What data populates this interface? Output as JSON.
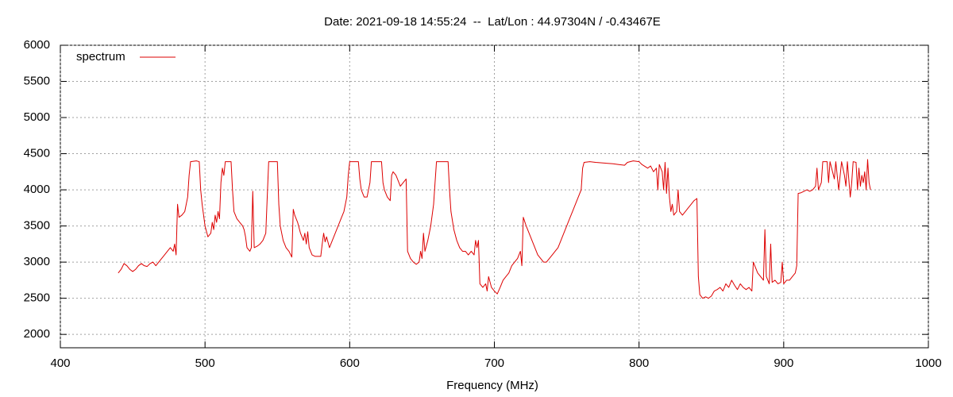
{
  "chart_data": {
    "type": "line",
    "title": "Date: 2021-09-18 14:55:24  --  Lat/Lon : 44.97304N / -0.43467E",
    "x_label": "Frequency (MHz)",
    "xlim": [
      400,
      1000
    ],
    "xticks": [
      400,
      500,
      600,
      700,
      800,
      900,
      1000
    ],
    "ylim": [
      1815,
      6000
    ],
    "yticks": [
      2000,
      2500,
      3000,
      3500,
      4000,
      4500,
      5000,
      5500,
      6000
    ],
    "grid": true,
    "legend": "top-left",
    "x": [
      440,
      442,
      444,
      446,
      448,
      450,
      452,
      454,
      456,
      458,
      460,
      462,
      464,
      466,
      468,
      470,
      472,
      474,
      476,
      478,
      479,
      480,
      481,
      482,
      484,
      486,
      488,
      489,
      490,
      494,
      496,
      497,
      498,
      500,
      502,
      504,
      505,
      506,
      507,
      508,
      509,
      510,
      511,
      512,
      513,
      514,
      518,
      519,
      520,
      522,
      524,
      526,
      527,
      528,
      529,
      531,
      532,
      533,
      534,
      536,
      538,
      540,
      542,
      543,
      544,
      550,
      551,
      552,
      554,
      556,
      558,
      560,
      561,
      562,
      564,
      566,
      568,
      569,
      570,
      571,
      572,
      574,
      576,
      578,
      580,
      581,
      582,
      583,
      584,
      586,
      588,
      590,
      592,
      594,
      596,
      598,
      599,
      600,
      606,
      607,
      608,
      610,
      612,
      614,
      615,
      622,
      623,
      624,
      626,
      628,
      629,
      630,
      632,
      634,
      635,
      637,
      639,
      640,
      642,
      644,
      646,
      648,
      649,
      650,
      651,
      652,
      654,
      656,
      658,
      659,
      660,
      668,
      669,
      670,
      672,
      674,
      676,
      678,
      680,
      682,
      684,
      686,
      687,
      688,
      689,
      690,
      692,
      694,
      695,
      696,
      698,
      700,
      702,
      704,
      706,
      708,
      710,
      712,
      714,
      716,
      718,
      719,
      720,
      722,
      724,
      726,
      728,
      730,
      732,
      734,
      736,
      738,
      740,
      742,
      744,
      746,
      748,
      750,
      752,
      754,
      756,
      758,
      760,
      761,
      762,
      766,
      770,
      776,
      782,
      786,
      790,
      792,
      796,
      800,
      802,
      806,
      808,
      810,
      812,
      813,
      814,
      816,
      817,
      818,
      819,
      820,
      821,
      822,
      823,
      824,
      826,
      827,
      828,
      830,
      832,
      834,
      836,
      838,
      840,
      841,
      842,
      844,
      846,
      848,
      850,
      852,
      854,
      856,
      858,
      860,
      862,
      864,
      866,
      868,
      870,
      872,
      874,
      876,
      878,
      879,
      880,
      882,
      884,
      886,
      887,
      888,
      890,
      891,
      892,
      894,
      896,
      898,
      899,
      900,
      902,
      904,
      906,
      908,
      909,
      910,
      912,
      914,
      916,
      918,
      920,
      922,
      923,
      924,
      926,
      927,
      930,
      931,
      932,
      935,
      936,
      938,
      940,
      942,
      943,
      944,
      946,
      947,
      948,
      950,
      951,
      952,
      953,
      954,
      955,
      956,
      957,
      958,
      959,
      960
    ],
    "series": [
      {
        "name": "spectrum",
        "color": "#dd0000",
        "values": [
          2850,
          2900,
          2980,
          2950,
          2900,
          2870,
          2900,
          2950,
          2980,
          2950,
          2940,
          2980,
          3000,
          2950,
          3000,
          3050,
          3100,
          3150,
          3200,
          3150,
          3250,
          3100,
          3800,
          3620,
          3650,
          3700,
          3900,
          4200,
          4390,
          4400,
          4390,
          4000,
          3800,
          3500,
          3350,
          3400,
          3550,
          3450,
          3650,
          3550,
          3700,
          3600,
          4100,
          4300,
          4200,
          4390,
          4390,
          4000,
          3700,
          3600,
          3550,
          3500,
          3450,
          3350,
          3200,
          3150,
          3200,
          3980,
          3200,
          3220,
          3250,
          3300,
          3400,
          3900,
          4390,
          4390,
          3800,
          3500,
          3300,
          3200,
          3150,
          3070,
          3730,
          3650,
          3550,
          3400,
          3300,
          3400,
          3250,
          3420,
          3200,
          3100,
          3080,
          3080,
          3080,
          3250,
          3400,
          3280,
          3350,
          3200,
          3300,
          3400,
          3500,
          3600,
          3700,
          3900,
          4200,
          4390,
          4390,
          4150,
          4000,
          3900,
          3900,
          4100,
          4390,
          4390,
          4100,
          4000,
          3900,
          3850,
          4200,
          4250,
          4200,
          4100,
          4050,
          4100,
          4150,
          3150,
          3050,
          3000,
          2970,
          3000,
          3150,
          3050,
          3400,
          3150,
          3300,
          3500,
          3800,
          4100,
          4390,
          4390,
          4000,
          3700,
          3450,
          3300,
          3200,
          3150,
          3150,
          3100,
          3150,
          3100,
          3300,
          3200,
          3300,
          2700,
          2650,
          2700,
          2600,
          2800,
          2650,
          2600,
          2560,
          2650,
          2750,
          2800,
          2850,
          2950,
          3000,
          3050,
          3150,
          2950,
          3620,
          3500,
          3400,
          3300,
          3200,
          3100,
          3050,
          3000,
          3000,
          3050,
          3100,
          3150,
          3200,
          3300,
          3400,
          3500,
          3600,
          3700,
          3800,
          3900,
          4000,
          4300,
          4380,
          4390,
          4380,
          4370,
          4360,
          4350,
          4340,
          4380,
          4400,
          4390,
          4350,
          4300,
          4330,
          4250,
          4300,
          4000,
          4350,
          4250,
          4000,
          4380,
          3950,
          4300,
          3900,
          3700,
          3800,
          3650,
          3700,
          4000,
          3700,
          3650,
          3700,
          3750,
          3800,
          3850,
          3880,
          2800,
          2550,
          2500,
          2520,
          2500,
          2530,
          2600,
          2620,
          2650,
          2600,
          2700,
          2650,
          2750,
          2680,
          2620,
          2700,
          2650,
          2620,
          2650,
          2600,
          3000,
          2950,
          2850,
          2800,
          2750,
          3450,
          2800,
          2700,
          3250,
          2720,
          2750,
          2700,
          2720,
          3000,
          2700,
          2750,
          2750,
          2800,
          2850,
          2950,
          3950,
          3960,
          3980,
          4000,
          3980,
          4000,
          4050,
          4300,
          4000,
          4100,
          4390,
          4390,
          4100,
          4390,
          4150,
          4390,
          4000,
          4390,
          4200,
          4050,
          4390,
          3900,
          4100,
          4390,
          4380,
          4000,
          4300,
          4050,
          4200,
          4100,
          4250,
          4000,
          4420,
          4100,
          4000
        ]
      }
    ]
  }
}
